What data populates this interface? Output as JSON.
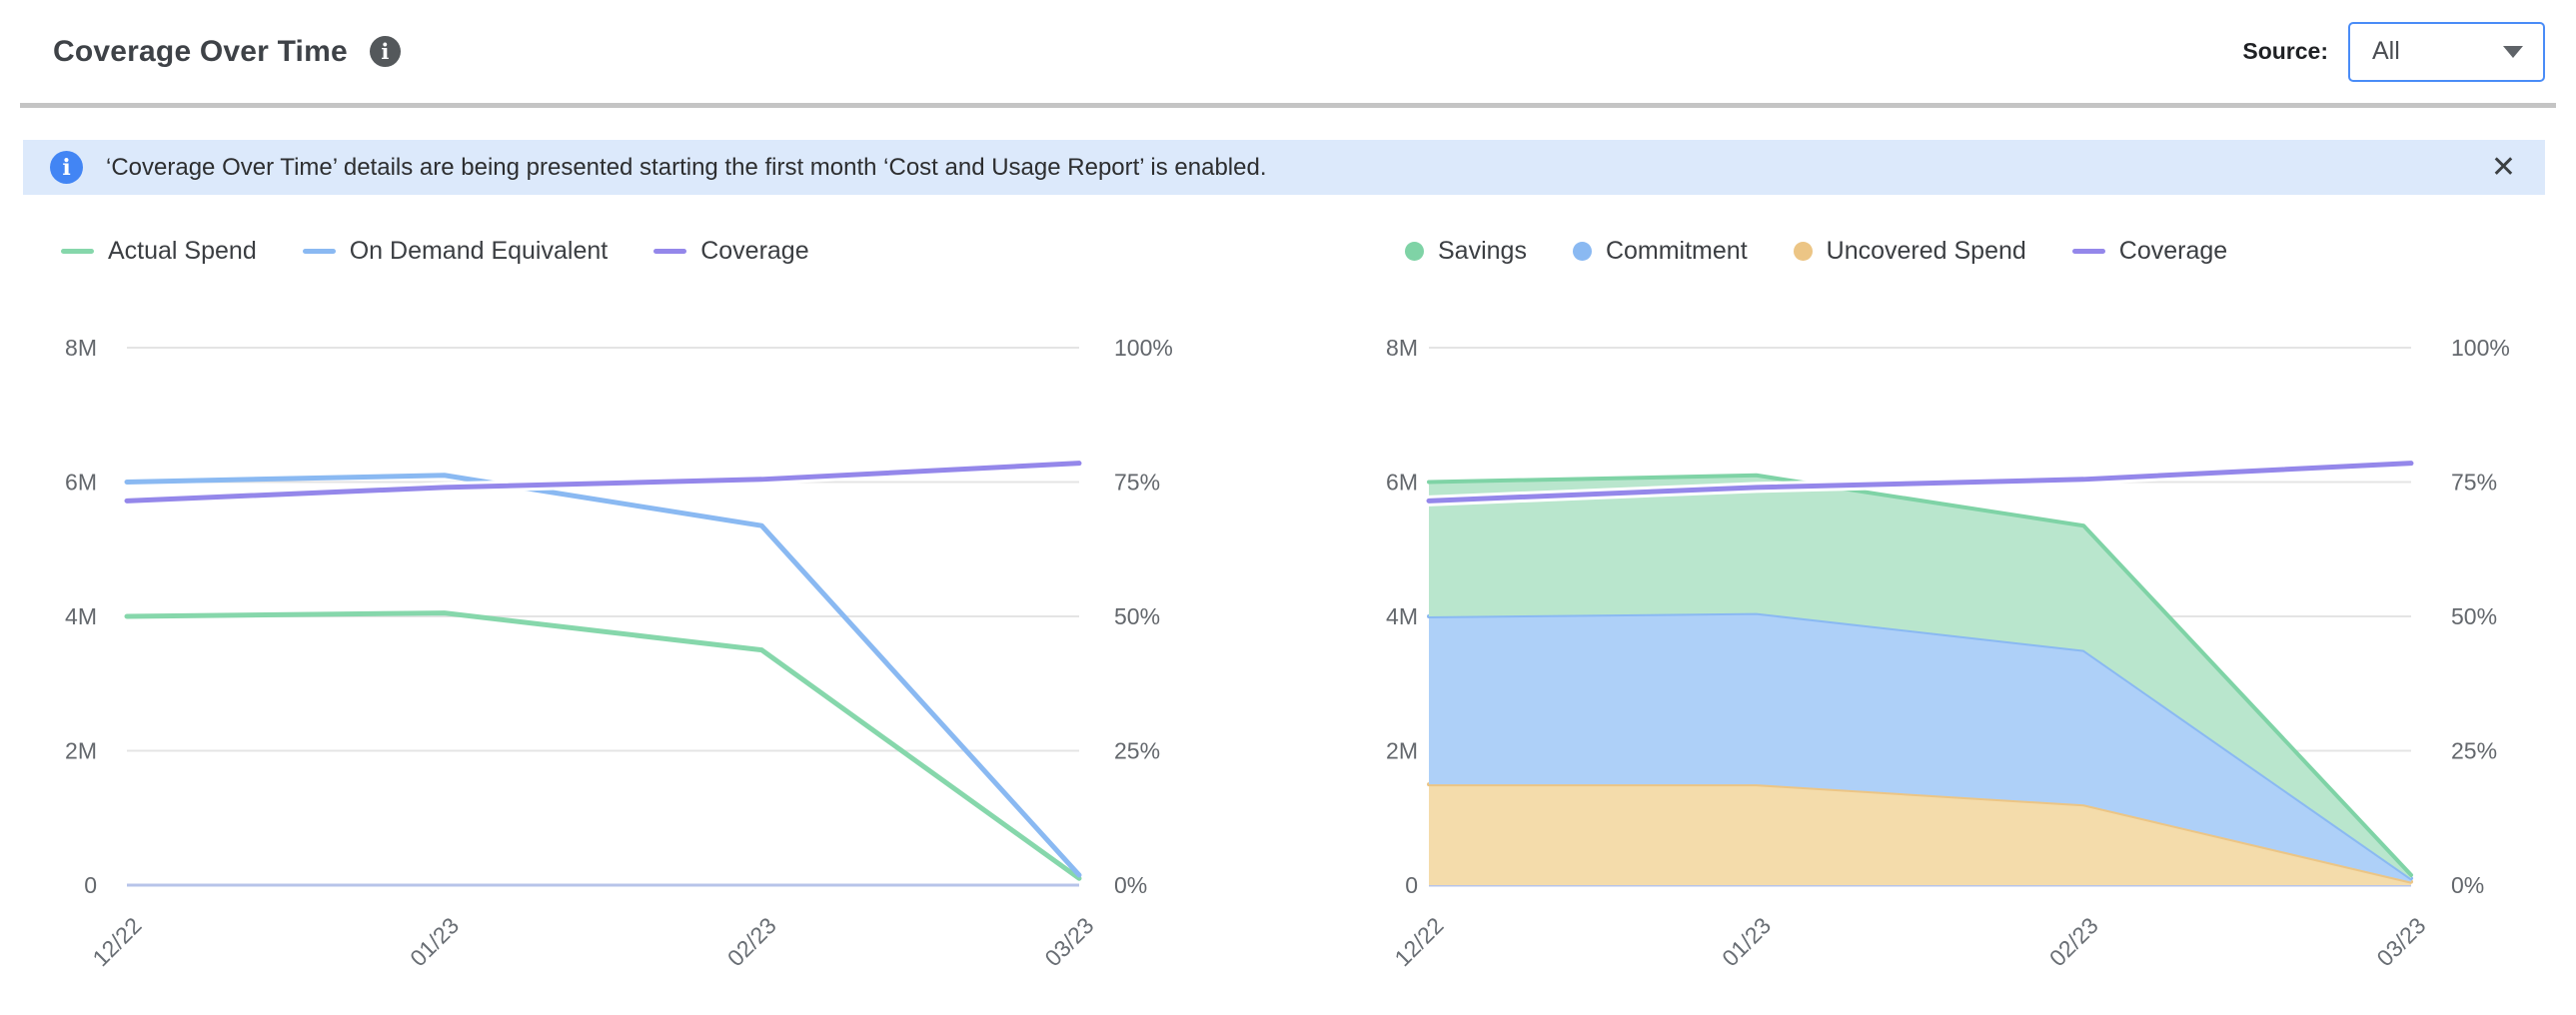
{
  "header": {
    "title": "Coverage Over Time",
    "info_icon": "i",
    "source_label": "Source:",
    "source_value": "All"
  },
  "banner": {
    "icon": "i",
    "text": "‘Coverage Over Time’ details are being presented starting the first month ‘Cost and Usage Report’ is enabled.",
    "close": "✕"
  },
  "colors": {
    "accent_blue": "#4a8cf7",
    "banner_bg": "#dce9fb",
    "banner_icon": "#4285f4",
    "gridline": "#e4e4e4",
    "zero_line": "#b7c4e9",
    "axis_text": "#63676c",
    "green": "#86d7ab",
    "blue": "#8ab9f2",
    "purple": "#9487ea",
    "orange": "#ecc585"
  },
  "chart_data": [
    {
      "type": "line",
      "title": "",
      "categories": [
        "12/22",
        "01/23",
        "02/23",
        "03/23"
      ],
      "y_left": {
        "unit": "M",
        "max": 8,
        "labels": [
          "8M",
          "6M",
          "4M",
          "2M",
          "0"
        ],
        "values": [
          8,
          6,
          4,
          2,
          0
        ]
      },
      "y_right": {
        "unit": "%",
        "max": 100,
        "labels": [
          "100%",
          "75%",
          "50%",
          "25%",
          "0%"
        ],
        "values": [
          100,
          75,
          50,
          25,
          0
        ]
      },
      "grid": true,
      "legend_position": "top",
      "series": [
        {
          "name": "Actual Spend",
          "kind": "line",
          "legend": "line",
          "axis": "left",
          "color": "#86d7ab",
          "values": [
            4.0,
            4.05,
            3.5,
            0.1
          ]
        },
        {
          "name": "On Demand Equivalent",
          "kind": "line",
          "legend": "line",
          "axis": "left",
          "color": "#8ab9f2",
          "values": [
            6.0,
            6.1,
            5.35,
            0.15
          ]
        },
        {
          "name": "Coverage",
          "kind": "line",
          "legend": "line",
          "axis": "right",
          "color": "#9487ea",
          "halo": true,
          "values": [
            71.5,
            74,
            75.5,
            78.5
          ]
        }
      ]
    },
    {
      "type": "area",
      "title": "",
      "categories": [
        "12/22",
        "01/23",
        "02/23",
        "03/23"
      ],
      "y_left": {
        "unit": "M",
        "max": 8,
        "labels": [
          "8M",
          "6M",
          "4M",
          "2M",
          "0"
        ],
        "values": [
          8,
          6,
          4,
          2,
          0
        ]
      },
      "y_right": {
        "unit": "%",
        "max": 100,
        "labels": [
          "100%",
          "75%",
          "50%",
          "25%",
          "0%"
        ],
        "values": [
          100,
          75,
          50,
          25,
          0
        ]
      },
      "grid": true,
      "legend_position": "top",
      "series": [
        {
          "name": "Savings",
          "kind": "area-stack",
          "stack_level": 2,
          "legend": "dot",
          "axis": "left",
          "color": "#7fd3a6",
          "fill": "#b9e6cd",
          "values": [
            2.0,
            2.05,
            1.85,
            0.05
          ]
        },
        {
          "name": "Commitment",
          "kind": "area-stack",
          "stack_level": 1,
          "legend": "dot",
          "axis": "left",
          "color": "#8ab9f2",
          "fill": "#aed0f8",
          "values": [
            2.5,
            2.55,
            2.3,
            0.05
          ]
        },
        {
          "name": "Uncovered Spend",
          "kind": "area-stack",
          "stack_level": 0,
          "legend": "dot",
          "axis": "left",
          "color": "#ecc585",
          "fill": "#f4dcab",
          "values": [
            1.5,
            1.5,
            1.2,
            0.05
          ]
        },
        {
          "name": "Coverage",
          "kind": "line",
          "legend": "line",
          "axis": "right",
          "color": "#9487ea",
          "halo": true,
          "values": [
            71.5,
            74,
            75.5,
            78.5
          ]
        }
      ]
    }
  ]
}
